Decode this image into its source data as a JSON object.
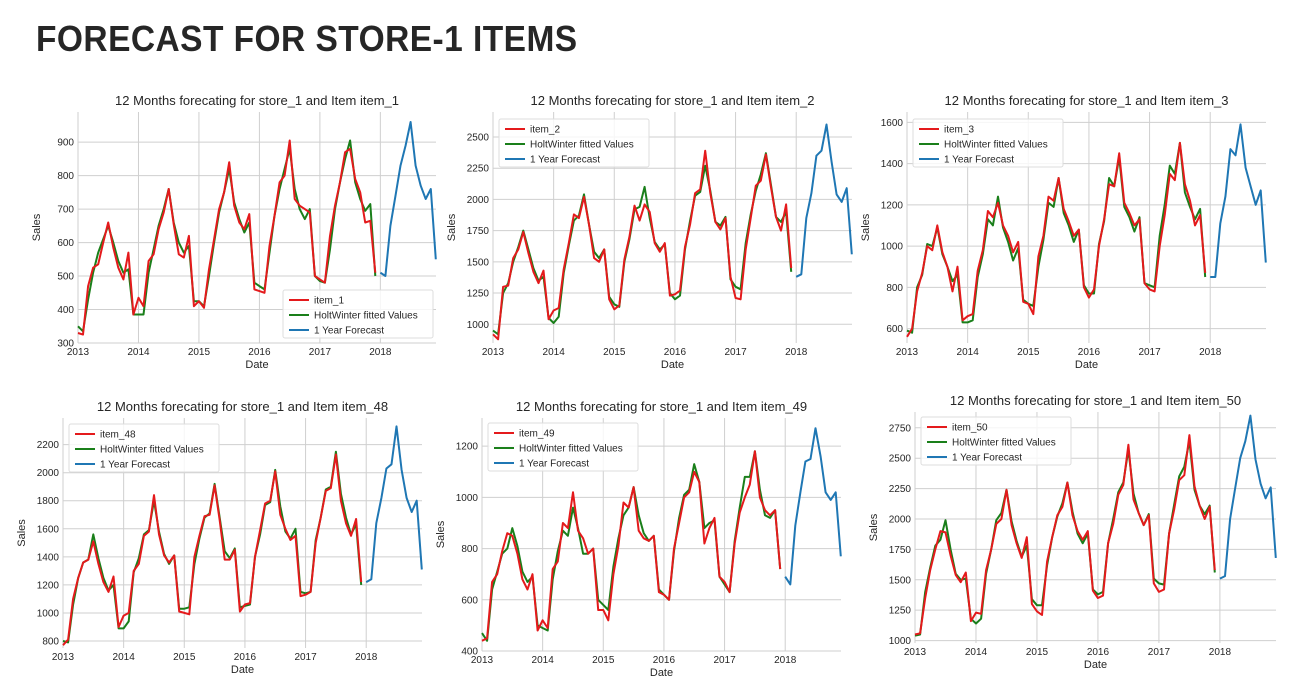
{
  "page": {
    "title": "FORECAST FOR STORE-1 ITEMS"
  },
  "colors": {
    "actual": "#e41a1c",
    "fitted": "#1a7f1a",
    "forecast": "#1f77b4"
  },
  "chart_data": [
    {
      "type": "line",
      "title": "12 Months forecating for store_1 and Item item_1",
      "xlabel": "Date",
      "ylabel": "Sales",
      "xlim": [
        2013,
        2018.92
      ],
      "ylim": [
        300,
        990
      ],
      "xticks": [
        2013,
        2014,
        2015,
        2016,
        2017,
        2018
      ],
      "yticks": [
        300,
        400,
        500,
        600,
        700,
        800,
        900
      ],
      "ytick_labels": [
        "300",
        "400",
        "500",
        "600",
        "700",
        "800",
        "900"
      ],
      "legend": "bottom-right",
      "grid": true,
      "series": [
        {
          "name": "item_1",
          "values": [
            330,
            325,
            470,
            525,
            535,
            600,
            660,
            585,
            525,
            490,
            570,
            385,
            435,
            410,
            545,
            565,
            640,
            690,
            760,
            655,
            565,
            555,
            620,
            410,
            425,
            405,
            520,
            610,
            700,
            750,
            840,
            710,
            660,
            640,
            685,
            460,
            455,
            450,
            590,
            680,
            780,
            800,
            905,
            730,
            710,
            700,
            690,
            500,
            490,
            480,
            620,
            710,
            780,
            870,
            880,
            790,
            750,
            660,
            665,
            510
          ]
        },
        {
          "name": "HoltWinter fitted Values",
          "values": [
            350,
            335,
            430,
            510,
            570,
            610,
            650,
            600,
            545,
            510,
            520,
            385,
            385,
            385,
            510,
            580,
            650,
            700,
            760,
            660,
            600,
            570,
            590,
            425,
            425,
            410,
            500,
            600,
            690,
            750,
            820,
            720,
            670,
            630,
            660,
            480,
            470,
            460,
            570,
            680,
            760,
            820,
            880,
            760,
            700,
            670,
            700,
            500,
            485,
            480,
            580,
            700,
            780,
            850,
            905,
            780,
            730,
            695,
            715,
            500
          ]
        },
        {
          "name": "1 Year Forecast",
          "values": [
            510,
            500,
            650,
            740,
            830,
            890,
            960,
            830,
            770,
            730,
            760,
            550
          ]
        }
      ]
    },
    {
      "type": "line",
      "title": "12 Months forecating for store_1 and Item item_2",
      "xlabel": "Date",
      "ylabel": "Sales",
      "xlim": [
        2013,
        2018.92
      ],
      "ylim": [
        850,
        2700
      ],
      "xticks": [
        2013,
        2014,
        2015,
        2016,
        2017,
        2018
      ],
      "yticks": [
        1000,
        1250,
        1500,
        1750,
        2000,
        2250,
        2500
      ],
      "ytick_labels": [
        "1000",
        "1250",
        "1500",
        "1750",
        "2000",
        "2250",
        "2500"
      ],
      "legend": "top-left",
      "grid": true,
      "series": [
        {
          "name": "item_2",
          "values": [
            920,
            880,
            1300,
            1310,
            1530,
            1600,
            1740,
            1570,
            1420,
            1330,
            1430,
            1040,
            1110,
            1130,
            1440,
            1650,
            1880,
            1850,
            2020,
            1800,
            1530,
            1500,
            1600,
            1200,
            1120,
            1150,
            1520,
            1700,
            1950,
            1830,
            1960,
            1900,
            1650,
            1580,
            1650,
            1230,
            1240,
            1270,
            1620,
            1800,
            2050,
            2080,
            2390,
            2050,
            1820,
            1760,
            1850,
            1380,
            1210,
            1200,
            1600,
            1850,
            2110,
            2150,
            2360,
            2100,
            1860,
            1750,
            1960,
            1450
          ]
        },
        {
          "name": "HoltWinter fitted Values",
          "values": [
            950,
            920,
            1250,
            1330,
            1500,
            1620,
            1750,
            1600,
            1450,
            1350,
            1380,
            1050,
            1010,
            1060,
            1410,
            1630,
            1830,
            1870,
            2040,
            1800,
            1580,
            1530,
            1600,
            1220,
            1160,
            1140,
            1500,
            1680,
            1920,
            1940,
            2100,
            1850,
            1660,
            1600,
            1640,
            1250,
            1200,
            1230,
            1600,
            1830,
            2030,
            2060,
            2270,
            2070,
            1820,
            1790,
            1860,
            1360,
            1300,
            1280,
            1650,
            1880,
            2070,
            2200,
            2370,
            2120,
            1860,
            1820,
            1900,
            1420
          ]
        },
        {
          "name": "1 Year Forecast",
          "values": [
            1380,
            1400,
            1850,
            2050,
            2350,
            2390,
            2600,
            2300,
            2040,
            1980,
            2090,
            1560
          ]
        }
      ]
    },
    {
      "type": "line",
      "title": "12 Months forecating for store_1 and Item item_3",
      "xlabel": "Date",
      "ylabel": "Sales",
      "xlim": [
        2013,
        2018.92
      ],
      "ylim": [
        530,
        1650
      ],
      "xticks": [
        2013,
        2014,
        2015,
        2016,
        2017,
        2018
      ],
      "yticks": [
        600,
        800,
        1000,
        1200,
        1400,
        1600
      ],
      "ytick_labels": [
        "600",
        "800",
        "1000",
        "1200",
        "1400",
        "1600"
      ],
      "legend": "top-left",
      "grid": true,
      "series": [
        {
          "name": "item_3",
          "values": [
            560,
            600,
            780,
            870,
            1000,
            980,
            1100,
            970,
            900,
            780,
            900,
            640,
            660,
            670,
            880,
            980,
            1170,
            1140,
            1210,
            1100,
            1050,
            970,
            1020,
            730,
            720,
            670,
            950,
            1050,
            1240,
            1220,
            1330,
            1180,
            1120,
            1050,
            1080,
            800,
            750,
            790,
            1000,
            1130,
            1300,
            1290,
            1450,
            1210,
            1160,
            1100,
            1130,
            820,
            790,
            780,
            1000,
            1150,
            1350,
            1320,
            1500,
            1300,
            1220,
            1100,
            1150,
            870
          ]
        },
        {
          "name": "HoltWinter fitted Values",
          "values": [
            590,
            580,
            800,
            860,
            1010,
            1000,
            1090,
            960,
            900,
            830,
            860,
            630,
            630,
            640,
            850,
            960,
            1130,
            1100,
            1240,
            1090,
            1020,
            930,
            990,
            740,
            720,
            710,
            900,
            1030,
            1210,
            1190,
            1330,
            1160,
            1100,
            1020,
            1080,
            810,
            770,
            770,
            1010,
            1120,
            1330,
            1290,
            1430,
            1190,
            1140,
            1070,
            1140,
            820,
            810,
            800,
            1050,
            1200,
            1390,
            1350,
            1500,
            1260,
            1190,
            1130,
            1180,
            850
          ]
        },
        {
          "name": "1 Year Forecast",
          "values": [
            850,
            850,
            1110,
            1240,
            1470,
            1440,
            1590,
            1380,
            1290,
            1200,
            1270,
            920
          ]
        }
      ]
    },
    {
      "type": "line",
      "title": "12 Months forecating for store_1 and Item item_48",
      "xlabel": "Date",
      "ylabel": "Sales",
      "xlim": [
        2013,
        2018.92
      ],
      "ylim": [
        750,
        2390
      ],
      "xticks": [
        2013,
        2014,
        2015,
        2016,
        2017,
        2018
      ],
      "yticks": [
        800,
        1000,
        1200,
        1400,
        1600,
        1800,
        2000,
        2200
      ],
      "ytick_labels": [
        "800",
        "1000",
        "1200",
        "1400",
        "1600",
        "1800",
        "2000",
        "2200"
      ],
      "legend": "top-left",
      "grid": true,
      "series": [
        {
          "name": "item_48",
          "values": [
            770,
            810,
            1100,
            1250,
            1360,
            1380,
            1510,
            1350,
            1220,
            1150,
            1260,
            900,
            980,
            1000,
            1300,
            1350,
            1550,
            1580,
            1840,
            1560,
            1410,
            1360,
            1410,
            1010,
            1000,
            990,
            1400,
            1550,
            1690,
            1700,
            1910,
            1660,
            1380,
            1380,
            1450,
            1010,
            1060,
            1070,
            1400,
            1590,
            1780,
            1800,
            2010,
            1700,
            1600,
            1520,
            1550,
            1120,
            1130,
            1150,
            1500,
            1680,
            1870,
            1890,
            2130,
            1800,
            1640,
            1550,
            1670,
            1220
          ]
        },
        {
          "name": "HoltWinter fitted Values",
          "values": [
            800,
            790,
            1060,
            1250,
            1360,
            1380,
            1560,
            1390,
            1250,
            1160,
            1200,
            890,
            890,
            940,
            1290,
            1390,
            1560,
            1590,
            1800,
            1580,
            1420,
            1350,
            1410,
            1030,
            1030,
            1040,
            1350,
            1530,
            1680,
            1710,
            1920,
            1680,
            1440,
            1390,
            1460,
            1040,
            1050,
            1060,
            1400,
            1560,
            1770,
            1790,
            2020,
            1760,
            1580,
            1530,
            1600,
            1150,
            1140,
            1150,
            1520,
            1680,
            1880,
            1900,
            2150,
            1850,
            1680,
            1560,
            1630,
            1200
          ]
        },
        {
          "name": "1 Year Forecast",
          "values": [
            1220,
            1240,
            1640,
            1820,
            2030,
            2060,
            2330,
            2020,
            1820,
            1720,
            1800,
            1310
          ]
        }
      ]
    },
    {
      "type": "line",
      "title": "12 Months forecating for store_1 and Item item_49",
      "xlabel": "Date",
      "ylabel": "Sales",
      "xlim": [
        2013,
        2018.92
      ],
      "ylim": [
        400,
        1310
      ],
      "xticks": [
        2013,
        2014,
        2015,
        2016,
        2017,
        2018
      ],
      "yticks": [
        400,
        600,
        800,
        1000,
        1200
      ],
      "ytick_labels": [
        "400",
        "600",
        "800",
        "1000",
        "1200"
      ],
      "legend": "top-left",
      "grid": true,
      "series": [
        {
          "name": "item_49",
          "values": [
            440,
            450,
            670,
            700,
            790,
            860,
            850,
            780,
            680,
            640,
            700,
            480,
            520,
            490,
            720,
            750,
            900,
            880,
            1020,
            870,
            840,
            780,
            800,
            560,
            560,
            520,
            700,
            810,
            980,
            960,
            1040,
            870,
            840,
            830,
            850,
            630,
            620,
            600,
            800,
            900,
            1000,
            1020,
            1100,
            1060,
            820,
            880,
            920,
            690,
            670,
            630,
            820,
            940,
            1000,
            1050,
            1180,
            1000,
            950,
            930,
            950,
            720
          ]
        },
        {
          "name": "HoltWinter fitted Values",
          "values": [
            470,
            440,
            640,
            710,
            780,
            800,
            880,
            810,
            710,
            670,
            690,
            500,
            490,
            480,
            680,
            790,
            870,
            850,
            960,
            880,
            780,
            780,
            800,
            600,
            580,
            560,
            730,
            840,
            930,
            960,
            1040,
            930,
            860,
            830,
            850,
            640,
            620,
            600,
            790,
            920,
            1010,
            1030,
            1130,
            1060,
            880,
            900,
            910,
            690,
            660,
            630,
            830,
            960,
            1080,
            1080,
            1180,
            1030,
            930,
            920,
            950,
            720
          ]
        },
        {
          "name": "1 Year Forecast",
          "values": [
            690,
            660,
            890,
            1020,
            1140,
            1150,
            1270,
            1160,
            1020,
            990,
            1020,
            770
          ]
        }
      ]
    },
    {
      "type": "line",
      "title": "12 Months forecating for store_1 and Item item_50",
      "xlabel": "Date",
      "ylabel": "Sales",
      "xlim": [
        2013,
        2018.92
      ],
      "ylim": [
        980,
        2880
      ],
      "xticks": [
        2013,
        2014,
        2015,
        2016,
        2017,
        2018
      ],
      "yticks": [
        1000,
        1250,
        1500,
        1750,
        2000,
        2250,
        2500,
        2750
      ],
      "ytick_labels": [
        "1000",
        "1250",
        "1500",
        "1750",
        "2000",
        "2250",
        "2500",
        "2750"
      ],
      "legend": "top-left",
      "grid": true,
      "series": [
        {
          "name": "item_50",
          "values": [
            1050,
            1060,
            1350,
            1580,
            1750,
            1900,
            1890,
            1700,
            1540,
            1480,
            1560,
            1160,
            1230,
            1220,
            1580,
            1750,
            1960,
            2000,
            2240,
            1950,
            1800,
            1680,
            1850,
            1300,
            1240,
            1210,
            1650,
            1850,
            2030,
            2100,
            2300,
            2030,
            1900,
            1830,
            1900,
            1410,
            1350,
            1370,
            1800,
            1960,
            2200,
            2280,
            2610,
            2160,
            2050,
            1950,
            2030,
            1470,
            1400,
            1420,
            1880,
            2080,
            2320,
            2360,
            2690,
            2270,
            2110,
            2000,
            2100,
            1580
          ]
        },
        {
          "name": "HoltWinter fitted Values",
          "values": [
            1040,
            1050,
            1400,
            1600,
            1780,
            1830,
            1990,
            1750,
            1550,
            1500,
            1510,
            1180,
            1140,
            1180,
            1550,
            1750,
            1990,
            2050,
            2240,
            1980,
            1820,
            1690,
            1780,
            1340,
            1290,
            1290,
            1620,
            1850,
            2020,
            2130,
            2300,
            2060,
            1880,
            1800,
            1880,
            1420,
            1380,
            1400,
            1800,
            2000,
            2220,
            2300,
            2570,
            2210,
            2050,
            1950,
            2040,
            1510,
            1470,
            1460,
            1880,
            2120,
            2350,
            2430,
            2640,
            2240,
            2110,
            2040,
            2110,
            1560
          ]
        },
        {
          "name": "1 Year Forecast",
          "values": [
            1510,
            1530,
            2000,
            2250,
            2500,
            2640,
            2850,
            2490,
            2290,
            2170,
            2260,
            1680
          ]
        }
      ]
    }
  ]
}
